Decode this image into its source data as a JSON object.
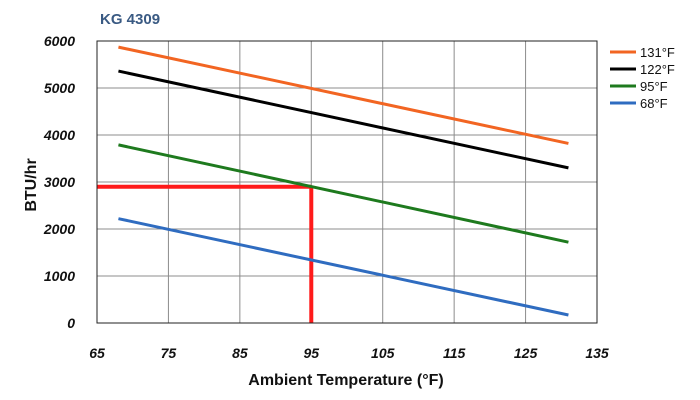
{
  "chart_data": {
    "type": "line",
    "title": "KG 4309",
    "xlabel": "Ambient Temperature (°F)",
    "ylabel": "BTU/hr",
    "xlim": [
      65,
      135
    ],
    "ylim": [
      0,
      6000
    ],
    "x_ticks": [
      "65",
      "75",
      "85",
      "95",
      "105",
      "115",
      "125",
      "135"
    ],
    "y_ticks": [
      "0",
      "1000",
      "2000",
      "3000",
      "4000",
      "5000",
      "6000"
    ],
    "grid": true,
    "legend_position": "right",
    "series": [
      {
        "name": "131°F",
        "color": "#f26522",
        "x": [
          68,
          131
        ],
        "y": [
          5870,
          3820
        ]
      },
      {
        "name": "122°F",
        "color": "#000000",
        "x": [
          68,
          131
        ],
        "y": [
          5360,
          3300
        ]
      },
      {
        "name": "95°F",
        "color": "#1e7a1e",
        "x": [
          68,
          131
        ],
        "y": [
          3790,
          1720
        ]
      },
      {
        "name": "68°F",
        "color": "#2f6cc0",
        "x": [
          68,
          131
        ],
        "y": [
          2220,
          170
        ]
      }
    ],
    "annotation": {
      "color": "#ff1a1a",
      "x": 95,
      "y": 2900
    }
  }
}
